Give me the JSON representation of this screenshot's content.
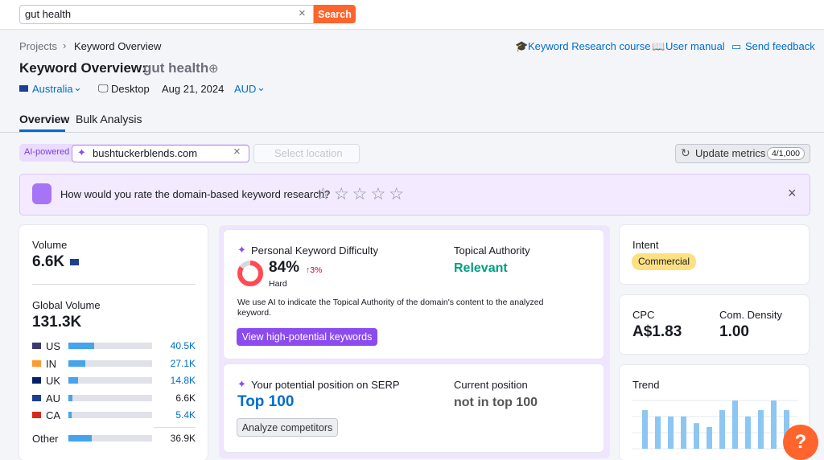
{
  "search": {
    "query": "gut health",
    "button": "Search"
  },
  "breadcrumbs": [
    "Projects",
    "Keyword Overview"
  ],
  "links": [
    "Keyword Research course",
    "User manual",
    "Send feedback"
  ],
  "header": {
    "title": "Keyword Overview:",
    "keyword": "gut health"
  },
  "filters": {
    "database": "Australia",
    "device": "Desktop",
    "date": "Aug 21, 2024",
    "currency": "AUD"
  },
  "tabs": [
    "Overview",
    "Bulk Analysis"
  ],
  "domain_bar": {
    "badge": "AI-powered",
    "domain": "bushtuckerblends.com",
    "location_placeholder": "Select location",
    "update_button": "Update metrics",
    "limit": "4/1,000"
  },
  "feedback": {
    "question": "How would you rate the domain-based keyword research?"
  },
  "volume": {
    "label": "Volume",
    "value": "6.6K",
    "global_label": "Global Volume",
    "global": {
      "value": 131300,
      "label": "131.3K"
    },
    "countries": [
      {
        "code": "US",
        "volume": {
          "value": 40500,
          "label": "40.5K"
        }
      },
      {
        "code": "IN",
        "volume": {
          "value": 27100,
          "label": "27.1K"
        }
      },
      {
        "code": "UK",
        "volume": {
          "value": 14800,
          "label": "14.8K"
        }
      },
      {
        "code": "AU",
        "volume": {
          "value": 6600,
          "label": "6.6K"
        }
      },
      {
        "code": "CA",
        "volume": {
          "value": 5400,
          "label": "5.4K"
        }
      }
    ],
    "other": {
      "name": "Other",
      "volume": {
        "value": 36900,
        "label": "36.9K"
      }
    }
  },
  "pkd": {
    "label": "Personal Keyword Difficulty",
    "difficulty": {
      "value": 84,
      "label": "84%"
    },
    "change": "↑3%",
    "level": "Hard",
    "authority_label": "Topical Authority",
    "authority": "Relevant",
    "note": "We use AI to indicate the Topical Authority of the domain's content to the analyzed keyword.",
    "button": "View high-potential keywords"
  },
  "serp": {
    "label": "Your potential position on SERP",
    "value": "Top 100",
    "current_label": "Current position",
    "current": "not in top 100",
    "button": "Analyze competitors"
  },
  "intent": {
    "label": "Intent",
    "value": "Commercial"
  },
  "cpc": {
    "label": "CPC",
    "value": "A$1.83",
    "density_label": "Com. Density",
    "density": "1.00"
  },
  "trend": {
    "label": "Trend",
    "values": [
      80,
      67,
      67,
      67,
      53,
      45,
      80,
      100,
      67,
      80,
      100,
      80
    ]
  }
}
